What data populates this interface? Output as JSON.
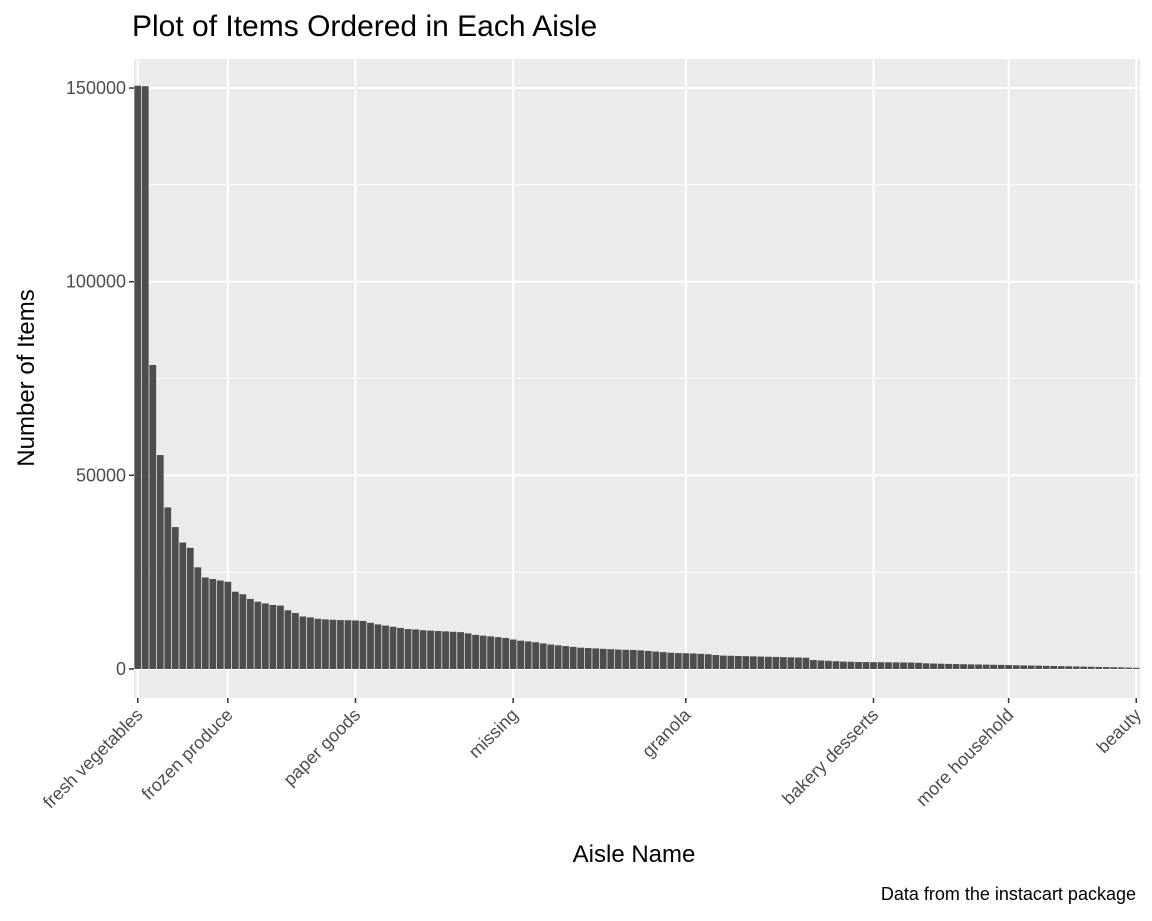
{
  "chart_data": {
    "type": "bar",
    "title": "Plot of Items Ordered in Each Aisle",
    "xlabel": "Aisle Name",
    "ylabel": "Number of Items",
    "caption": "Data from the instacart package",
    "ylim": [
      -7500,
      157500
    ],
    "yticks": [
      0,
      50000,
      100000,
      150000
    ],
    "yticks_labels": [
      "0",
      "50000",
      "100000",
      "150000"
    ],
    "bar_count": 134,
    "xtick_labels": [
      {
        "label": "fresh vegetables",
        "bar_index": 0
      },
      {
        "label": "frozen produce",
        "bar_index": 12
      },
      {
        "label": "paper goods",
        "bar_index": 29
      },
      {
        "label": "missing",
        "bar_index": 50
      },
      {
        "label": "granola",
        "bar_index": 73
      },
      {
        "label": "bakery desserts",
        "bar_index": 98
      },
      {
        "label": "more household",
        "bar_index": 116
      },
      {
        "label": "beauty",
        "bar_index": 133
      }
    ],
    "values": [
      150609,
      150473,
      78493,
      55240,
      41699,
      36627,
      32644,
      31269,
      26240,
      23635,
      23228,
      22827,
      22507,
      19934,
      19286,
      18087,
      17356,
      16914,
      16517,
      16357,
      15141,
      14447,
      13549,
      13310,
      12959,
      12800,
      12701,
      12615,
      12584,
      12528,
      12400,
      11910,
      11500,
      11200,
      10900,
      10600,
      10300,
      10200,
      10000,
      9900,
      9800,
      9700,
      9600,
      9500,
      9200,
      8800,
      8600,
      8400,
      8200,
      8000,
      7600,
      7300,
      7100,
      6900,
      6600,
      6300,
      6100,
      5900,
      5700,
      5500,
      5400,
      5300,
      5200,
      5100,
      5000,
      4950,
      4900,
      4800,
      4650,
      4500,
      4350,
      4200,
      4100,
      4050,
      4000,
      3900,
      3800,
      3600,
      3450,
      3400,
      3350,
      3300,
      3250,
      3200,
      3150,
      3100,
      3050,
      3000,
      2950,
      2900,
      2300,
      2200,
      2100,
      2000,
      1900,
      1850,
      1800,
      1780,
      1760,
      1740,
      1720,
      1700,
      1680,
      1650,
      1600,
      1450,
      1400,
      1350,
      1300,
      1260,
      1220,
      1180,
      1150,
      1120,
      1080,
      1050,
      1000,
      960,
      920,
      880,
      840,
      800,
      760,
      720,
      680,
      640,
      600,
      560,
      520,
      480,
      440,
      400,
      350,
      290
    ],
    "bar_color": "#4d4d4d",
    "panel_color": "#ebebeb",
    "grid_color": "#ffffff",
    "grid": true,
    "legend": "none"
  }
}
